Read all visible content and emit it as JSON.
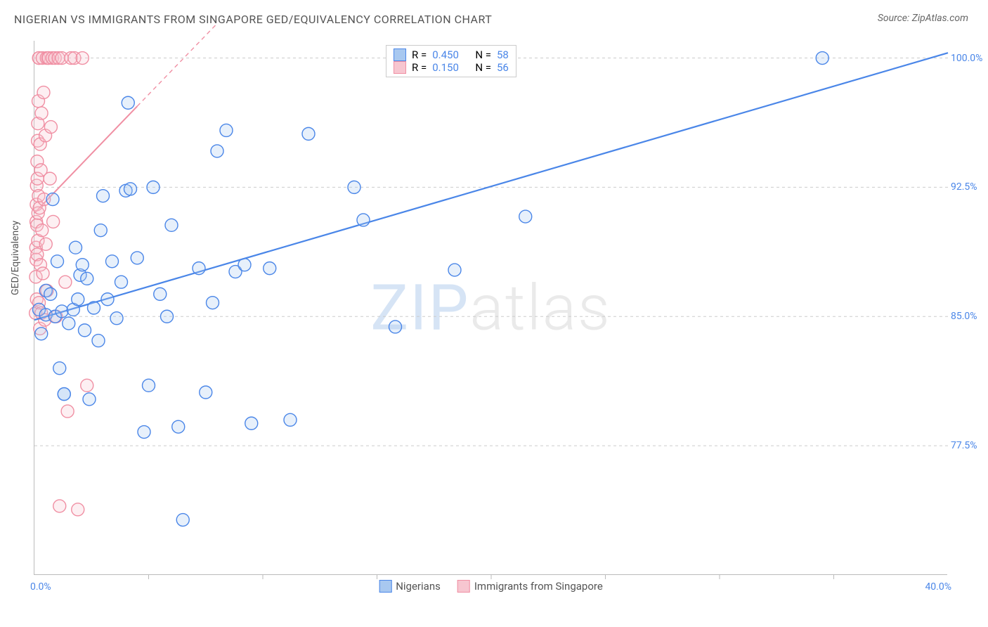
{
  "title": "NIGERIAN VS IMMIGRANTS FROM SINGAPORE GED/EQUIVALENCY CORRELATION CHART",
  "source_label": "Source: ZipAtlas.com",
  "ylabel": "GED/Equivalency",
  "watermark": {
    "part1": "ZIP",
    "part2": "atlas"
  },
  "chart": {
    "type": "scatter",
    "background_color": "#ffffff",
    "grid_color": "#cccccc",
    "grid_dash": "4,4",
    "axis_color": "#bbbbbb",
    "xlim": [
      0.0,
      40.0
    ],
    "ylim": [
      70.0,
      101.0
    ],
    "x_ticks_minor_step": 5.0,
    "y_gridlines": [
      77.5,
      85.0,
      92.5,
      100.0
    ],
    "y_tick_labels": [
      "77.5%",
      "85.0%",
      "92.5%",
      "100.0%"
    ],
    "x_min_label": "0.0%",
    "x_max_label": "40.0%",
    "label_fontsize": 14,
    "label_color": "#4a86e8",
    "marker_radius": 9,
    "marker_stroke_width": 1.4,
    "marker_fill_opacity": 0.28,
    "series": [
      {
        "name": "Nigerians",
        "color_stroke": "#4a86e8",
        "color_fill": "#a8c8f0",
        "R": "0.450",
        "N": "58",
        "trend": {
          "x1": 0.0,
          "y1": 84.8,
          "x2": 40.0,
          "y2": 100.3,
          "dash_after_x": 40.0,
          "stroke_width": 2.2
        },
        "points": [
          [
            0.2,
            85.4
          ],
          [
            0.3,
            84.0
          ],
          [
            0.5,
            86.5
          ],
          [
            0.5,
            85.1
          ],
          [
            0.7,
            86.3
          ],
          [
            0.8,
            91.8
          ],
          [
            0.9,
            85.0
          ],
          [
            1.0,
            88.2
          ],
          [
            1.1,
            82.0
          ],
          [
            1.2,
            85.3
          ],
          [
            1.3,
            80.5
          ],
          [
            1.3,
            80.5
          ],
          [
            1.5,
            84.6
          ],
          [
            1.7,
            85.4
          ],
          [
            1.8,
            89.0
          ],
          [
            1.9,
            86.0
          ],
          [
            2.0,
            87.4
          ],
          [
            2.1,
            88.0
          ],
          [
            2.2,
            84.2
          ],
          [
            2.3,
            87.2
          ],
          [
            2.4,
            80.2
          ],
          [
            2.6,
            85.5
          ],
          [
            2.8,
            83.6
          ],
          [
            2.9,
            90.0
          ],
          [
            3.0,
            92.0
          ],
          [
            3.2,
            86.0
          ],
          [
            3.4,
            88.2
          ],
          [
            3.6,
            84.9
          ],
          [
            3.8,
            87.0
          ],
          [
            4.0,
            92.3
          ],
          [
            4.1,
            97.4
          ],
          [
            4.2,
            92.4
          ],
          [
            4.5,
            88.4
          ],
          [
            4.8,
            78.3
          ],
          [
            5.0,
            81.0
          ],
          [
            5.2,
            92.5
          ],
          [
            5.5,
            86.3
          ],
          [
            5.8,
            85.0
          ],
          [
            6.0,
            90.3
          ],
          [
            6.3,
            78.6
          ],
          [
            6.5,
            73.2
          ],
          [
            7.2,
            87.8
          ],
          [
            7.5,
            80.6
          ],
          [
            7.8,
            85.8
          ],
          [
            8.0,
            94.6
          ],
          [
            8.4,
            95.8
          ],
          [
            8.8,
            87.6
          ],
          [
            9.2,
            88.0
          ],
          [
            9.5,
            78.8
          ],
          [
            10.3,
            87.8
          ],
          [
            11.2,
            79.0
          ],
          [
            12.0,
            95.6
          ],
          [
            14.0,
            92.5
          ],
          [
            14.4,
            90.6
          ],
          [
            15.8,
            84.4
          ],
          [
            18.4,
            87.7
          ],
          [
            21.5,
            90.8
          ],
          [
            34.5,
            100.0
          ]
        ]
      },
      {
        "name": "Immigrants from Singapore",
        "color_stroke": "#f08fa3",
        "color_fill": "#f7c6d0",
        "R": "0.150",
        "N": "56",
        "trend": {
          "x1": 0.0,
          "y1": 91.0,
          "x2": 4.5,
          "y2": 97.2,
          "dash_after_x": 4.5,
          "dash_end_x": 8.0,
          "dash_end_y": 102.0,
          "stroke_width": 2.0
        },
        "points": [
          [
            0.05,
            85.2
          ],
          [
            0.06,
            87.3
          ],
          [
            0.07,
            89.0
          ],
          [
            0.08,
            90.5
          ],
          [
            0.08,
            88.3
          ],
          [
            0.09,
            91.5
          ],
          [
            0.1,
            92.6
          ],
          [
            0.1,
            86.0
          ],
          [
            0.11,
            90.3
          ],
          [
            0.12,
            94.0
          ],
          [
            0.12,
            88.6
          ],
          [
            0.13,
            93.0
          ],
          [
            0.14,
            95.2
          ],
          [
            0.15,
            89.4
          ],
          [
            0.15,
            96.2
          ],
          [
            0.16,
            91.0
          ],
          [
            0.17,
            97.5
          ],
          [
            0.18,
            92.0
          ],
          [
            0.19,
            100.0
          ],
          [
            0.2,
            100.0
          ],
          [
            0.2,
            85.8
          ],
          [
            0.22,
            91.3
          ],
          [
            0.24,
            84.3
          ],
          [
            0.25,
            95.0
          ],
          [
            0.26,
            88.0
          ],
          [
            0.28,
            93.5
          ],
          [
            0.3,
            85.2
          ],
          [
            0.31,
            96.8
          ],
          [
            0.33,
            90.0
          ],
          [
            0.35,
            100.0
          ],
          [
            0.37,
            87.5
          ],
          [
            0.4,
            98.0
          ],
          [
            0.42,
            91.8
          ],
          [
            0.45,
            84.8
          ],
          [
            0.48,
            95.5
          ],
          [
            0.5,
            89.2
          ],
          [
            0.53,
            100.0
          ],
          [
            0.55,
            86.5
          ],
          [
            0.6,
            100.0
          ],
          [
            0.62,
            100.0
          ],
          [
            0.68,
            93.0
          ],
          [
            0.72,
            96.0
          ],
          [
            0.78,
            100.0
          ],
          [
            0.82,
            90.5
          ],
          [
            0.9,
            100.0
          ],
          [
            0.95,
            85.0
          ],
          [
            1.05,
            100.0
          ],
          [
            1.1,
            74.0
          ],
          [
            1.2,
            100.0
          ],
          [
            1.35,
            87.0
          ],
          [
            1.45,
            79.5
          ],
          [
            1.6,
            100.0
          ],
          [
            1.75,
            100.0
          ],
          [
            1.9,
            73.8
          ],
          [
            2.1,
            100.0
          ],
          [
            2.3,
            81.0
          ]
        ]
      }
    ]
  },
  "legend_top": {
    "r_label": "R =",
    "n_label": "N ="
  },
  "legend_bottom": {
    "items": [
      "Nigerians",
      "Immigrants from Singapore"
    ]
  }
}
